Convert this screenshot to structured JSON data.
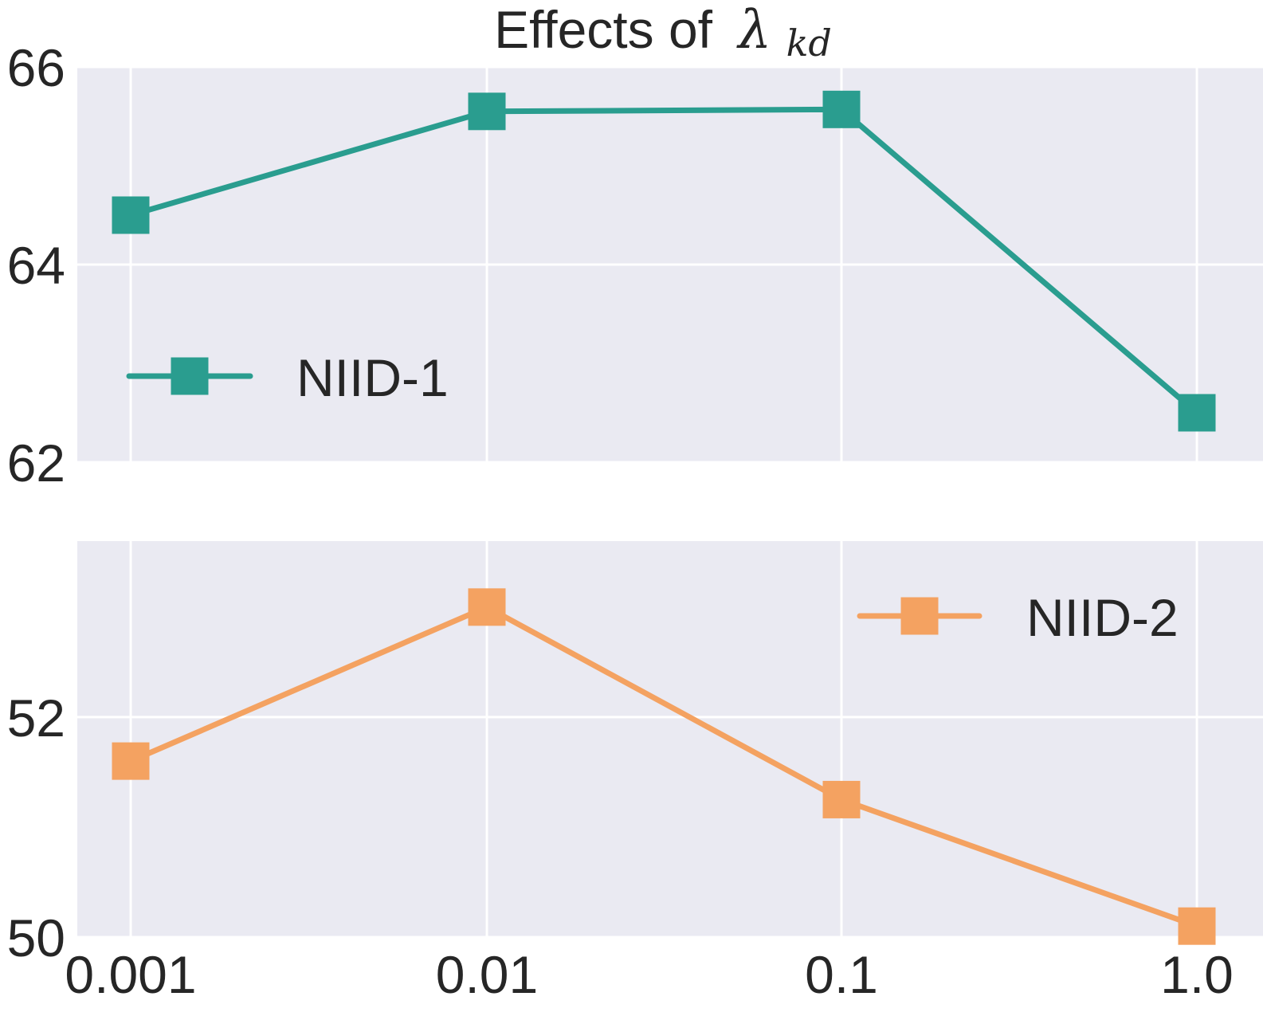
{
  "chart_data": {
    "type": "line",
    "title": "Effects of",
    "title_symbol": "λ",
    "title_subscript": "kd",
    "categories": [
      "0.001",
      "0.01",
      "0.1",
      "1.0"
    ],
    "panels": [
      {
        "id": "top",
        "series": [
          {
            "name": "NIID-1",
            "values": [
              64.5,
              65.55,
              65.57,
              62.5
            ],
            "color": "#2a9d8f"
          }
        ],
        "ylim": [
          62,
          66
        ],
        "yticks": [
          62,
          64,
          66
        ],
        "legend_position": "center-left"
      },
      {
        "id": "bottom",
        "series": [
          {
            "name": "NIID-2",
            "values": [
              51.6,
              53.0,
              51.25,
              50.1
            ],
            "color": "#f4a261"
          }
        ],
        "ylim": [
          50,
          53.6
        ],
        "yticks": [
          50,
          52
        ],
        "legend_position": "upper-right"
      }
    ],
    "xlabel": "",
    "ylabel": "",
    "grid": true,
    "background": "#eaeaf2"
  }
}
